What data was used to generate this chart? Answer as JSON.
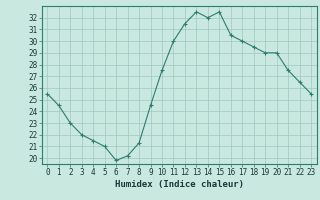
{
  "x": [
    0,
    1,
    2,
    3,
    4,
    5,
    6,
    7,
    8,
    9,
    10,
    11,
    12,
    13,
    14,
    15,
    16,
    17,
    18,
    19,
    20,
    21,
    22,
    23
  ],
  "y": [
    25.5,
    24.5,
    23.0,
    22.0,
    21.5,
    21.0,
    19.8,
    20.2,
    21.3,
    24.5,
    27.5,
    30.0,
    31.5,
    32.5,
    32.0,
    32.5,
    30.5,
    30.0,
    29.5,
    29.0,
    29.0,
    27.5,
    26.5,
    25.5
  ],
  "line_color": "#2e7d6e",
  "marker": "+",
  "bg_color": "#c8e8e0",
  "grid_color": "#a0c8c0",
  "xlabel": "Humidex (Indice chaleur)",
  "ylim": [
    19.5,
    33.0
  ],
  "xlim": [
    -0.5,
    23.5
  ],
  "yticks": [
    20,
    21,
    22,
    23,
    24,
    25,
    26,
    27,
    28,
    29,
    30,
    31,
    32
  ],
  "xticks": [
    0,
    1,
    2,
    3,
    4,
    5,
    6,
    7,
    8,
    9,
    10,
    11,
    12,
    13,
    14,
    15,
    16,
    17,
    18,
    19,
    20,
    21,
    22,
    23
  ],
  "tick_label_fontsize": 5.5,
  "xlabel_fontsize": 6.5
}
